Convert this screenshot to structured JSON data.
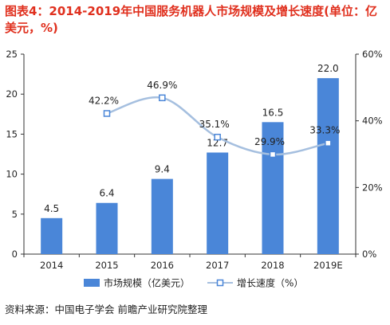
{
  "title": "图表4：2014-2019年中国服务机器人市场规模及增长速度(单位：亿美元，%)",
  "source": "资料来源：中国电子学会 前瞻产业研究院整理",
  "colors": {
    "bar": "#4a86d8",
    "line": "#a5bfdf",
    "marker": "#4a86d8",
    "title": "#e0301e"
  },
  "chart_data": {
    "type": "bar",
    "categories": [
      "2014",
      "2015",
      "2016",
      "2017",
      "2018",
      "2019E"
    ],
    "series": [
      {
        "name": "市场规模（亿美元）",
        "type": "bar",
        "axis": "left",
        "values": [
          4.5,
          6.4,
          9.4,
          12.7,
          16.5,
          22.0
        ],
        "labels": [
          "4.5",
          "6.4",
          "9.4",
          "12.7",
          "16.5",
          "22.0"
        ]
      },
      {
        "name": "增长速度（%）",
        "type": "line",
        "axis": "right",
        "values": [
          null,
          42.2,
          46.9,
          35.1,
          29.9,
          33.3
        ],
        "labels": [
          "",
          "42.2%",
          "46.9%",
          "35.1%",
          "29.9%",
          "33.3%"
        ]
      }
    ],
    "ylim_left": [
      0,
      25
    ],
    "yticks_left": [
      "0",
      "5",
      "10",
      "15",
      "20",
      "25"
    ],
    "ylim_right": [
      0,
      60
    ],
    "yticks_right": [
      "0%",
      "20%",
      "40%",
      "60%"
    ],
    "legend_position": "bottom",
    "grid": false
  }
}
